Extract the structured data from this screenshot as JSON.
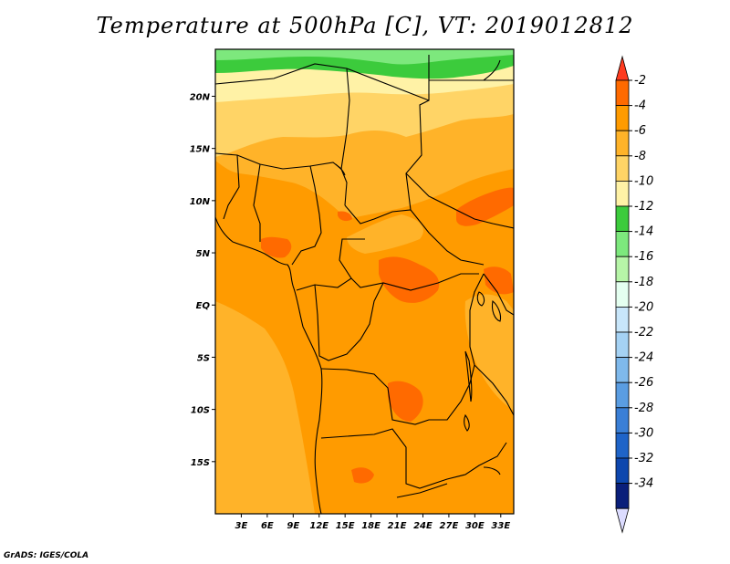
{
  "title": "Temperature at 500hPa [C], VT: 2019012812",
  "credit": "GrADS: IGES/COLA",
  "map": {
    "lon_range": [
      0,
      34.5
    ],
    "lat_range": [
      -20,
      24.5
    ],
    "lat_ticks": [
      {
        "value": 20,
        "label": "20N"
      },
      {
        "value": 15,
        "label": "15N"
      },
      {
        "value": 10,
        "label": "10N"
      },
      {
        "value": 5,
        "label": "5N"
      },
      {
        "value": 0,
        "label": "EQ"
      },
      {
        "value": -5,
        "label": "5S"
      },
      {
        "value": -10,
        "label": "10S"
      },
      {
        "value": -15,
        "label": "15S"
      }
    ],
    "lon_ticks": [
      {
        "value": 3,
        "label": "3E"
      },
      {
        "value": 6,
        "label": "6E"
      },
      {
        "value": 9,
        "label": "9E"
      },
      {
        "value": 12,
        "label": "12E"
      },
      {
        "value": 15,
        "label": "15E"
      },
      {
        "value": 18,
        "label": "18E"
      },
      {
        "value": 21,
        "label": "21E"
      },
      {
        "value": 24,
        "label": "24E"
      },
      {
        "value": 27,
        "label": "27E"
      },
      {
        "value": 30,
        "label": "30E"
      },
      {
        "value": 33,
        "label": "33E"
      }
    ]
  },
  "colorbar": {
    "labels": [
      "-2",
      "-4",
      "-6",
      "-8",
      "-10",
      "-12",
      "-14",
      "-16",
      "-18",
      "-20",
      "-22",
      "-24",
      "-26",
      "-28",
      "-30",
      "-32",
      "-34"
    ],
    "colors": [
      "#ff6a00",
      "#ff9b00",
      "#ffb329",
      "#ffd466",
      "#fff2a6",
      "#3ccb3c",
      "#7de87d",
      "#b7f5a8",
      "#e4fff0",
      "#c8e6fa",
      "#a5d2f4",
      "#7fb9ec",
      "#5a9de2",
      "#3a7fd6",
      "#1f64c8",
      "#0d47ae",
      "#0a1f7a"
    ],
    "top_color": "#ff3b1f",
    "bottom_color": "#dcdcff"
  }
}
